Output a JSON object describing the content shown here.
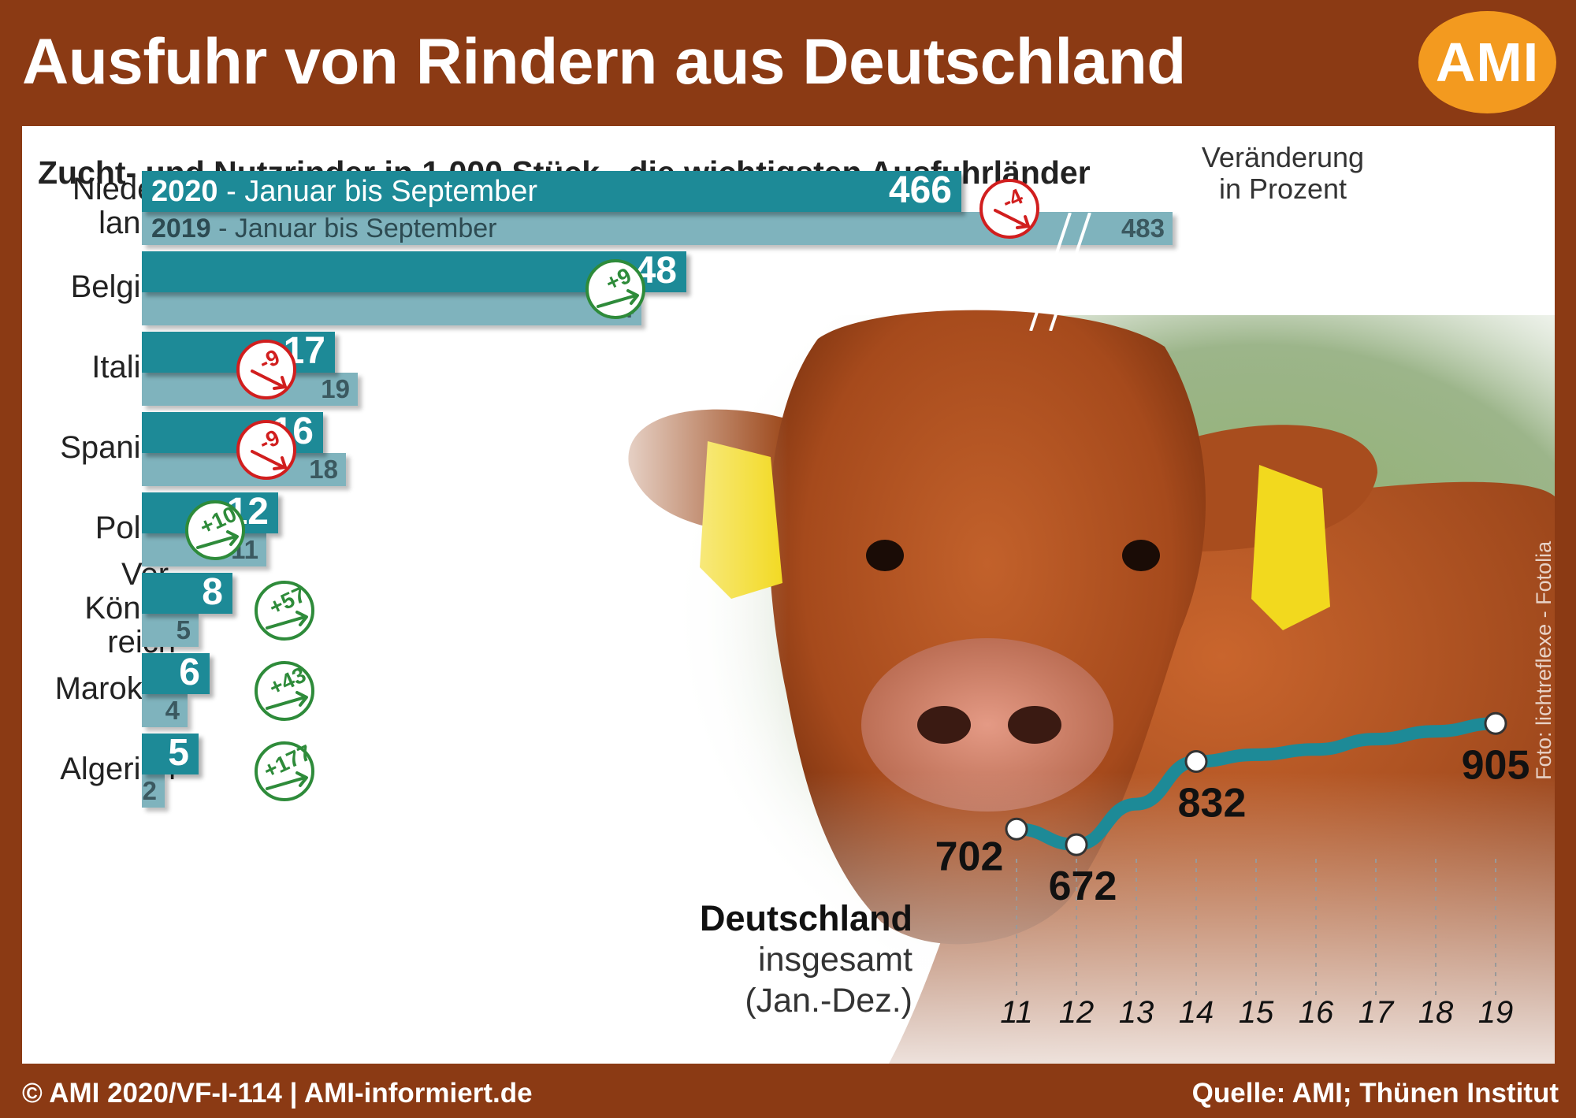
{
  "header": {
    "title": "Ausfuhr von Rindern aus Deutschland",
    "logo_text": "AMI"
  },
  "subtitle": "Zucht- und Nutzrinder in 1.000 Stück - die wichtigsten Ausfuhrländer",
  "change_heading": [
    "Veränderung",
    "in Prozent"
  ],
  "legend": {
    "current_year": "2020",
    "current_range": "- Januar bis September",
    "previous_year": "2019",
    "previous_range": "- Januar bis September"
  },
  "chart_data": [
    {
      "type": "bar",
      "title": "Zucht- und Nutzrinder in 1.000 Stück - die wichtigsten Ausfuhrländer",
      "categories": [
        "Nieder-lande",
        "Belgien",
        "Italien",
        "Spanien",
        "Polen",
        "Ver. König-reich",
        "Marokko",
        "Algerien"
      ],
      "category_lines": [
        [
          "Nieder-",
          "lande"
        ],
        [
          "Belgien"
        ],
        [
          "Italien"
        ],
        [
          "Spanien"
        ],
        [
          "Polen"
        ],
        [
          "Ver.",
          "König-",
          "reich"
        ],
        [
          "Marokko"
        ],
        [
          "Algerien"
        ]
      ],
      "series": [
        {
          "name": "2020 - Januar bis September",
          "values": [
            466,
            48,
            17,
            16,
            12,
            8,
            6,
            5
          ]
        },
        {
          "name": "2019 - Januar bis September",
          "values": [
            483,
            44,
            19,
            18,
            11,
            5,
            4,
            2
          ]
        }
      ],
      "change_percent": [
        "-4",
        "+9",
        "-9",
        "-9",
        "+10",
        "+57",
        "+43",
        "+177"
      ],
      "axis_break": true,
      "colors": {
        "current": "#1d8a97",
        "previous": "#7fb3bd",
        "up": "#2e8b3a",
        "down": "#d11e1e"
      }
    },
    {
      "type": "line",
      "title": "Deutschland insgesamt (Jan.-Dez.)",
      "x": [
        "11",
        "12",
        "13",
        "14",
        "15",
        "16",
        "17",
        "18",
        "19"
      ],
      "y": [
        702,
        672,
        null,
        832,
        null,
        null,
        null,
        null,
        905
      ],
      "trend_y": [
        702,
        672,
        750,
        832,
        845,
        855,
        875,
        890,
        905
      ],
      "labeled_points": [
        0,
        1,
        3,
        8
      ],
      "color": "#1d8a97"
    }
  ],
  "total_label": {
    "title": "Deutschland",
    "line1": "insgesamt",
    "line2": "(Jan.-Dez.)"
  },
  "photo_credit": "Foto: lichtreflexe - Fotolia",
  "footer": {
    "left": "© AMI 2020/VF-I-114 | AMI-informiert.de",
    "right": "Quelle: AMI; Thünen Institut"
  }
}
